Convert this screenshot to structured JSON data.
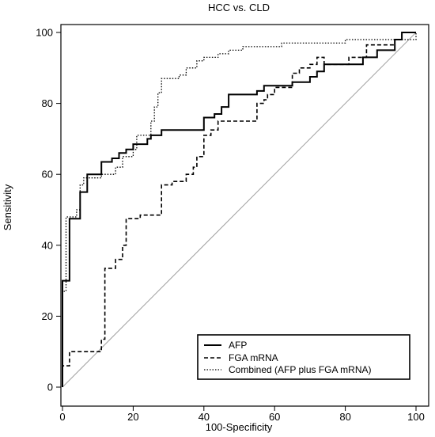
{
  "chart_data": {
    "type": "line",
    "title": "HCC vs. CLD",
    "xlabel": "100-Specificity",
    "ylabel": "Sensitivity",
    "xlim": [
      0,
      100
    ],
    "ylim": [
      0,
      100
    ],
    "xticks": [
      "0",
      "20",
      "40",
      "60",
      "80",
      "100"
    ],
    "yticks": [
      "0",
      "20",
      "40",
      "60",
      "80",
      "100"
    ],
    "legend_position": "bottom-right",
    "grid": false,
    "reference_line": {
      "from": [
        0,
        0
      ],
      "to": [
        100,
        100
      ],
      "color": "#a0a0a0"
    },
    "series": [
      {
        "name": "AFP",
        "style": "solid",
        "color": "#000000",
        "points": [
          [
            0,
            0
          ],
          [
            0,
            30
          ],
          [
            2,
            30
          ],
          [
            2,
            47.5
          ],
          [
            5,
            47.5
          ],
          [
            5,
            55
          ],
          [
            7,
            55
          ],
          [
            7,
            60
          ],
          [
            11,
            60
          ],
          [
            11,
            63.5
          ],
          [
            14,
            63.5
          ],
          [
            14,
            64.5
          ],
          [
            16,
            64.5
          ],
          [
            16,
            66
          ],
          [
            18,
            66
          ],
          [
            18,
            67
          ],
          [
            20,
            67
          ],
          [
            20,
            68.5
          ],
          [
            24,
            68.5
          ],
          [
            24,
            70
          ],
          [
            25,
            70
          ],
          [
            25,
            71
          ],
          [
            28,
            71
          ],
          [
            28,
            72.5
          ],
          [
            40,
            72.5
          ],
          [
            40,
            76
          ],
          [
            43,
            76
          ],
          [
            43,
            77
          ],
          [
            45,
            77
          ],
          [
            45,
            79
          ],
          [
            47,
            79
          ],
          [
            47,
            82.5
          ],
          [
            55,
            82.5
          ],
          [
            55,
            83.5
          ],
          [
            57,
            83.5
          ],
          [
            57,
            85
          ],
          [
            65,
            85
          ],
          [
            65,
            86
          ],
          [
            70,
            86
          ],
          [
            70,
            87.5
          ],
          [
            72,
            87.5
          ],
          [
            72,
            89
          ],
          [
            74,
            89
          ],
          [
            74,
            91
          ],
          [
            85,
            91
          ],
          [
            85,
            93
          ],
          [
            89,
            93
          ],
          [
            89,
            95
          ],
          [
            94,
            95
          ],
          [
            94,
            98
          ],
          [
            96,
            98
          ],
          [
            96,
            100
          ],
          [
            100,
            100
          ]
        ]
      },
      {
        "name": "FGA mRNA",
        "style": "dashed",
        "color": "#000000",
        "points": [
          [
            0,
            0
          ],
          [
            0,
            6
          ],
          [
            2,
            6
          ],
          [
            2,
            10
          ],
          [
            11,
            10
          ],
          [
            11,
            13.5
          ],
          [
            12,
            13.5
          ],
          [
            12,
            33.5
          ],
          [
            15,
            33.5
          ],
          [
            15,
            36
          ],
          [
            17,
            36
          ],
          [
            17,
            40
          ],
          [
            18,
            40
          ],
          [
            18,
            47.5
          ],
          [
            22,
            47.5
          ],
          [
            22,
            48.5
          ],
          [
            28,
            48.5
          ],
          [
            28,
            57
          ],
          [
            31,
            57
          ],
          [
            31,
            58
          ],
          [
            35,
            58
          ],
          [
            35,
            60
          ],
          [
            37,
            60
          ],
          [
            37,
            62
          ],
          [
            38,
            62
          ],
          [
            38,
            65
          ],
          [
            40,
            65
          ],
          [
            40,
            71
          ],
          [
            42,
            71
          ],
          [
            42,
            72.5
          ],
          [
            44,
            72.5
          ],
          [
            44,
            75
          ],
          [
            55,
            75
          ],
          [
            55,
            80
          ],
          [
            57,
            80
          ],
          [
            57,
            81
          ],
          [
            58,
            81
          ],
          [
            58,
            82.5
          ],
          [
            60,
            82.5
          ],
          [
            60,
            84.5
          ],
          [
            65,
            84.5
          ],
          [
            65,
            88.5
          ],
          [
            67,
            88.5
          ],
          [
            67,
            90
          ],
          [
            70,
            90
          ],
          [
            70,
            91
          ],
          [
            72,
            91
          ],
          [
            72,
            93
          ],
          [
            74,
            93
          ],
          [
            74,
            91
          ],
          [
            81,
            91
          ],
          [
            81,
            93
          ],
          [
            86,
            93
          ],
          [
            86,
            96.5
          ],
          [
            94,
            96.5
          ],
          [
            94,
            98
          ],
          [
            96,
            98
          ],
          [
            96,
            100
          ],
          [
            100,
            100
          ]
        ]
      },
      {
        "name": "Combined (AFP plus FGA mRNA)",
        "style": "dotted",
        "color": "#000000",
        "points": [
          [
            0,
            0
          ],
          [
            0,
            27
          ],
          [
            1,
            27
          ],
          [
            1,
            48
          ],
          [
            4,
            48
          ],
          [
            4,
            50
          ],
          [
            5,
            50
          ],
          [
            5,
            57
          ],
          [
            6,
            57
          ],
          [
            6,
            59
          ],
          [
            11,
            59
          ],
          [
            11,
            60
          ],
          [
            15,
            60
          ],
          [
            15,
            62
          ],
          [
            17,
            62
          ],
          [
            17,
            65
          ],
          [
            20,
            65
          ],
          [
            20,
            67
          ],
          [
            21,
            67
          ],
          [
            21,
            71
          ],
          [
            25,
            71
          ],
          [
            25,
            75
          ],
          [
            26,
            75
          ],
          [
            26,
            79
          ],
          [
            27,
            79
          ],
          [
            27,
            83
          ],
          [
            28,
            83
          ],
          [
            28,
            87
          ],
          [
            33,
            87
          ],
          [
            33,
            88
          ],
          [
            35,
            88
          ],
          [
            35,
            90
          ],
          [
            38,
            90
          ],
          [
            38,
            92
          ],
          [
            40,
            92
          ],
          [
            40,
            93
          ],
          [
            44,
            93
          ],
          [
            44,
            94
          ],
          [
            47,
            94
          ],
          [
            47,
            95
          ],
          [
            51,
            95
          ],
          [
            51,
            96
          ],
          [
            62,
            96
          ],
          [
            62,
            97
          ],
          [
            80,
            97
          ],
          [
            80,
            98
          ],
          [
            100,
            98
          ],
          [
            100,
            100
          ]
        ]
      }
    ]
  }
}
